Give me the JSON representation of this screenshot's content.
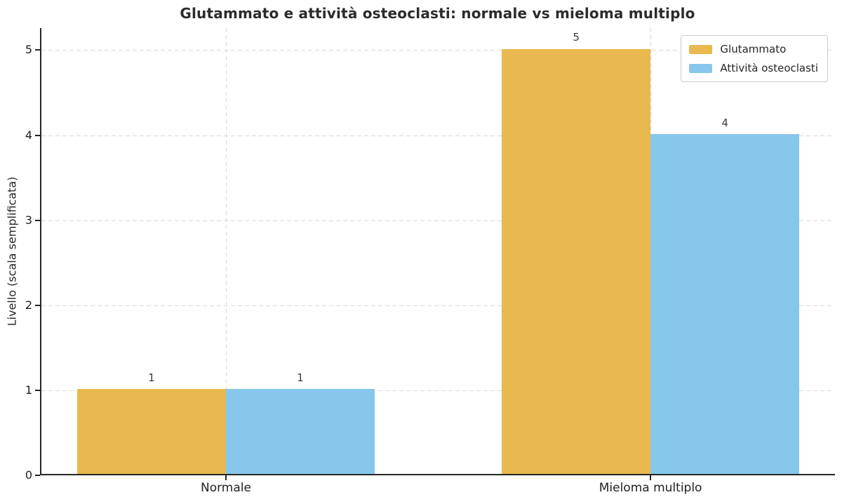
{
  "chart_data": {
    "type": "bar",
    "title": "Glutammato e attività osteoclasti: normale vs mieloma multiplo",
    "xlabel": "",
    "ylabel": "Livello (scala semplificata)",
    "categories": [
      "Normale",
      "Mieloma multiplo"
    ],
    "series": [
      {
        "name": "Glutammato",
        "color": "#E9B84E",
        "values": [
          1,
          5
        ]
      },
      {
        "name": "Attività osteoclasti",
        "color": "#87C7EB",
        "values": [
          1,
          4
        ]
      }
    ],
    "value_labels": [
      [
        "1",
        "5"
      ],
      [
        "1",
        "4"
      ]
    ],
    "yticks": [
      "0",
      "1",
      "2",
      "3",
      "4",
      "5"
    ],
    "ylim": [
      0,
      5.26
    ],
    "grid": true,
    "grid_style": "dashed",
    "legend_position": "upper right",
    "colors": {
      "text": "#262626",
      "grid": "#d9d9d9",
      "spine": "#262626",
      "background": "#ffffff"
    }
  }
}
